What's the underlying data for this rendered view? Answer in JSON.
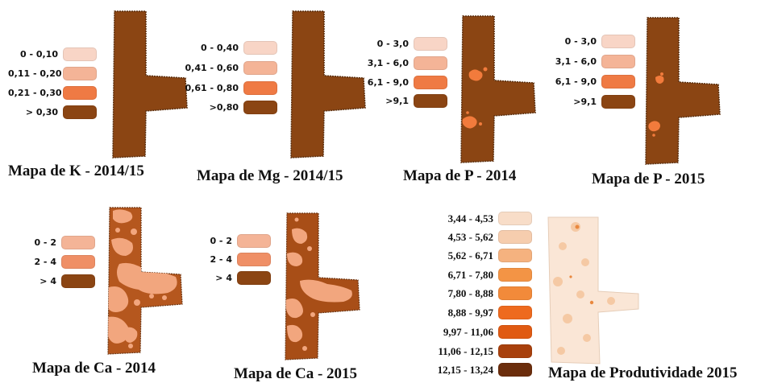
{
  "colors": {
    "dark_brown": "#8B4513",
    "light_peach": "#F8D5C6",
    "mid_peach": "#F4B497",
    "orange": "#EF7A44",
    "spot_orange": "#F27B3C",
    "ca_light": "#F2A67E",
    "yield_bg": "#F9E3D2"
  },
  "panels": [
    {
      "id": "k",
      "caption": "Mapa de K - 2014/15",
      "legend": [
        {
          "label": "0 - 0,10",
          "color": "#F8D5C6"
        },
        {
          "label": "0,11 - 0,20",
          "color": "#F4B497"
        },
        {
          "label": "0,21 - 0,30",
          "color": "#EF7A44"
        },
        {
          "label": "> 0,30",
          "color": "#8B4513"
        }
      ]
    },
    {
      "id": "mg",
      "caption": "Mapa de Mg - 2014/15",
      "legend": [
        {
          "label": "0 - 0,40",
          "color": "#F8D5C6"
        },
        {
          "label": "0,41 - 0,60",
          "color": "#F4B497"
        },
        {
          "label": "0,61 - 0,80",
          "color": "#EF7A44"
        },
        {
          "label": ">0,80",
          "color": "#8B4513"
        }
      ]
    },
    {
      "id": "p2014",
      "caption": "Mapa de P - 2014",
      "legend": [
        {
          "label": "0 - 3,0",
          "color": "#F8D5C6"
        },
        {
          "label": "3,1 - 6,0",
          "color": "#F4B497"
        },
        {
          "label": "6,1 - 9,0",
          "color": "#EF7A44"
        },
        {
          "label": ">9,1",
          "color": "#8B4513"
        }
      ]
    },
    {
      "id": "p2015",
      "caption": "Mapa de P - 2015",
      "legend": [
        {
          "label": "0 - 3,0",
          "color": "#F8D5C6"
        },
        {
          "label": "3,1 - 6,0",
          "color": "#F4B497"
        },
        {
          "label": "6,1 - 9,0",
          "color": "#EF7A44"
        },
        {
          "label": ">9,1",
          "color": "#8B4513"
        }
      ]
    },
    {
      "id": "ca2014",
      "caption": "Mapa de Ca - 2014",
      "legend": [
        {
          "label": "0 - 2",
          "color": "#F4B497"
        },
        {
          "label": "2 - 4",
          "color": "#EF8F66"
        },
        {
          "label": "> 4",
          "color": "#8B4513"
        }
      ]
    },
    {
      "id": "ca2015",
      "caption": "Mapa de Ca - 2015",
      "legend": [
        {
          "label": "0 - 2",
          "color": "#F4B497"
        },
        {
          "label": "2 - 4",
          "color": "#EF8F66"
        },
        {
          "label": "> 4",
          "color": "#8B4513"
        }
      ]
    },
    {
      "id": "prod2015",
      "caption": "Mapa de Produtividade 2015",
      "legend": [
        {
          "label": "3,44 - 4,53",
          "color": "#F8DDC8"
        },
        {
          "label": "4,53 - 5,62",
          "color": "#F6CDAE"
        },
        {
          "label": "5,62 - 6,71",
          "color": "#F5B27F"
        },
        {
          "label": "6,71 - 7,80",
          "color": "#F39445"
        },
        {
          "label": "7,80 - 8,88",
          "color": "#F28A3A"
        },
        {
          "label": "8,88 - 9,97",
          "color": "#EE6A1E"
        },
        {
          "label": "9,97 - 11,06",
          "color": "#E05A12"
        },
        {
          "label": "11,06 - 12,15",
          "color": "#A8400C"
        },
        {
          "label": "12,15 - 13,24",
          "color": "#6B2D0C"
        }
      ]
    }
  ]
}
